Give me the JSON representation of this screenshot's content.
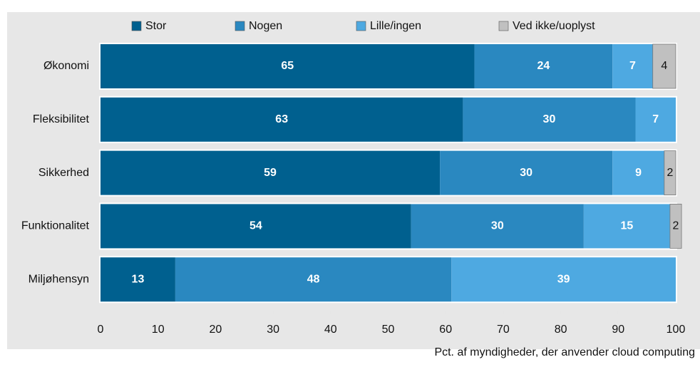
{
  "chart_data": {
    "type": "stacked-bar-horizontal",
    "categories": [
      "Økonomi",
      "Fleksibilitet",
      "Sikkerhed",
      "Funktionalitet",
      "Miljøhensyn"
    ],
    "series": [
      {
        "name": "Stor",
        "color": "#00608f",
        "values": [
          65,
          63,
          59,
          54,
          13
        ]
      },
      {
        "name": "Nogen",
        "color": "#2a88c0",
        "values": [
          24,
          30,
          30,
          30,
          48
        ]
      },
      {
        "name": "Lille/ingen",
        "color": "#4ea9e1",
        "values": [
          7,
          7,
          9,
          15,
          39
        ]
      },
      {
        "name": "Ved ikke/uoplyst",
        "color": "#c0c0c0",
        "values": [
          4,
          null,
          2,
          2,
          null
        ]
      }
    ],
    "xlim": [
      0,
      100
    ],
    "xticks": [
      0,
      10,
      20,
      30,
      40,
      50,
      60,
      70,
      80,
      90,
      100
    ],
    "x_label": "Pct. af myndigheder, der anvender cloud computing"
  }
}
